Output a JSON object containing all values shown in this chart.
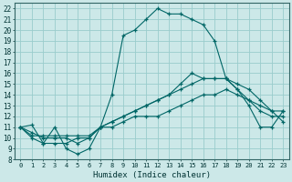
{
  "xlabel": "Humidex (Indice chaleur)",
  "bg_color": "#cce8e8",
  "grid_color": "#99cccc",
  "line_color": "#006666",
  "xlim": [
    -0.5,
    23.5
  ],
  "ylim": [
    8,
    22.5
  ],
  "xticks": [
    0,
    1,
    2,
    3,
    4,
    5,
    6,
    7,
    8,
    9,
    10,
    11,
    12,
    13,
    14,
    15,
    16,
    17,
    18,
    19,
    20,
    21,
    22,
    23
  ],
  "yticks": [
    8,
    9,
    10,
    11,
    12,
    13,
    14,
    15,
    16,
    17,
    18,
    19,
    20,
    21,
    22
  ],
  "curve1_x": [
    0,
    1,
    2,
    3,
    4,
    5,
    6,
    7,
    8,
    9,
    10,
    11,
    12,
    13,
    14,
    15,
    16,
    17,
    18,
    19,
    20,
    21,
    22,
    23
  ],
  "curve1_y": [
    11.0,
    11.2,
    9.5,
    11.0,
    9.0,
    8.5,
    9.0,
    11.0,
    14.0,
    19.5,
    20.0,
    21.0,
    22.0,
    21.5,
    21.5,
    21.0,
    20.5,
    19.0,
    15.5,
    14.5,
    13.5,
    12.5,
    12.0,
    12.0
  ],
  "curve2_x": [
    0,
    1,
    2,
    3,
    4,
    5,
    6,
    7,
    8,
    9,
    10,
    11,
    12,
    13,
    14,
    15,
    16,
    17,
    18,
    19,
    20,
    21,
    22,
    23
  ],
  "curve2_y": [
    11.0,
    10.2,
    10.2,
    10.2,
    10.2,
    10.2,
    10.2,
    11.0,
    11.5,
    12.0,
    12.5,
    13.0,
    13.5,
    14.0,
    14.5,
    15.0,
    15.5,
    15.5,
    15.5,
    15.0,
    14.5,
    13.5,
    12.5,
    12.5
  ],
  "curve3_x": [
    0,
    1,
    2,
    3,
    4,
    5,
    6,
    7,
    8,
    9,
    10,
    11,
    12,
    13,
    14,
    15,
    16,
    17,
    18,
    19,
    20,
    21,
    22,
    23
  ],
  "curve3_y": [
    11.0,
    10.0,
    9.5,
    9.5,
    9.5,
    10.0,
    10.0,
    11.0,
    11.0,
    11.5,
    12.0,
    12.0,
    12.0,
    12.5,
    13.0,
    13.5,
    14.0,
    14.0,
    14.5,
    14.0,
    13.5,
    13.0,
    12.5,
    11.5
  ],
  "curve4_x": [
    0,
    1,
    2,
    3,
    4,
    5,
    6,
    7,
    8,
    9,
    10,
    11,
    12,
    13,
    14,
    15,
    16,
    17,
    18,
    19,
    20,
    21,
    22,
    23
  ],
  "curve4_y": [
    11.0,
    10.5,
    10.0,
    10.0,
    10.0,
    9.5,
    10.0,
    11.0,
    11.5,
    12.0,
    12.5,
    13.0,
    13.5,
    14.0,
    15.0,
    16.0,
    15.5,
    15.5,
    15.5,
    14.5,
    13.0,
    11.0,
    11.0,
    12.5
  ]
}
